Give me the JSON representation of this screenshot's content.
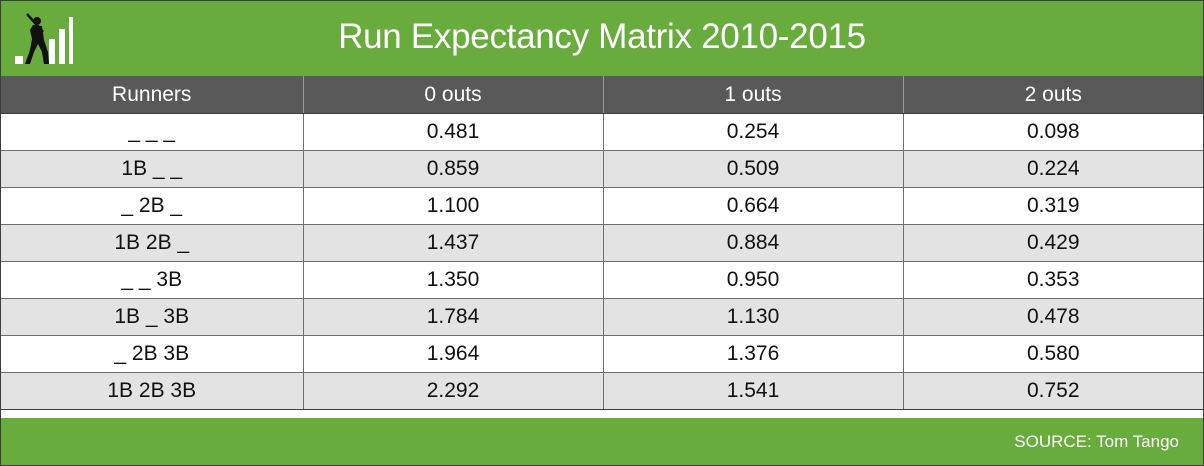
{
  "chart_data": {
    "type": "table",
    "title": "Run Expectancy Matrix 2010-2015",
    "columns": [
      "Runners",
      "0 outs",
      "1 outs",
      "2 outs"
    ],
    "rows": [
      [
        "_ _ _",
        "0.481",
        "0.254",
        "0.098"
      ],
      [
        "1B _ _",
        "0.859",
        "0.509",
        "0.224"
      ],
      [
        "_ 2B _",
        "1.100",
        "0.664",
        "0.319"
      ],
      [
        "1B 2B _",
        "1.437",
        "0.884",
        "0.429"
      ],
      [
        "_ _ 3B",
        "1.350",
        "0.950",
        "0.353"
      ],
      [
        "1B _ 3B",
        "1.784",
        "1.130",
        "0.478"
      ],
      [
        "_ 2B 3B",
        "1.964",
        "1.376",
        "0.580"
      ],
      [
        "1B 2B 3B",
        "2.292",
        "1.541",
        "0.752"
      ]
    ],
    "source": "SOURCE: Tom Tango"
  },
  "colors": {
    "brand_green": "#69ac3e",
    "header_gray": "#595959",
    "stripe_gray": "#e3e3e3"
  },
  "icons": {
    "logo": "batter-bar-chart-icon"
  }
}
